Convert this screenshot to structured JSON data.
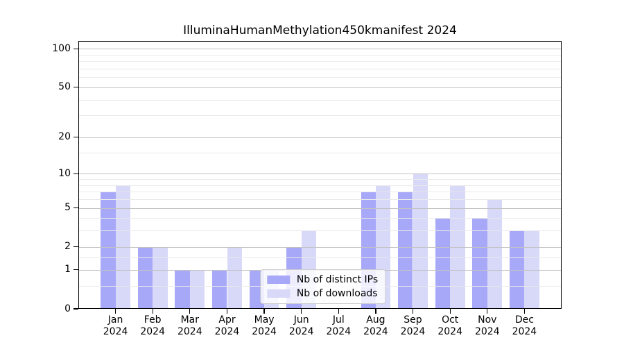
{
  "figure": {
    "background": "#ffffff"
  },
  "chart_data": {
    "type": "bar",
    "title": "IlluminaHumanMethylation450kmanifest 2024",
    "categories": [
      "Jan",
      "Feb",
      "Mar",
      "Apr",
      "May",
      "Jun",
      "Jul",
      "Aug",
      "Sep",
      "Oct",
      "Nov",
      "Dec"
    ],
    "category_year": "2024",
    "series": [
      {
        "name": "Nb of distinct IPs",
        "color": "#a8a8f8",
        "values": [
          7,
          2,
          1,
          1,
          1,
          2,
          0,
          7,
          7,
          4,
          4,
          3
        ]
      },
      {
        "name": "Nb of downloads",
        "color": "#d8d8f8",
        "values": [
          8,
          2,
          1,
          2,
          1,
          3,
          0,
          8,
          10,
          8,
          6,
          3
        ]
      }
    ],
    "yscale": "log1p",
    "ylim": [
      0,
      115
    ],
    "yticks": [
      0,
      1,
      2,
      5,
      10,
      20,
      50,
      100
    ],
    "minor_gridlines": [
      0.5,
      1.5,
      3,
      4,
      6,
      7,
      8,
      9,
      15,
      30,
      40,
      60,
      70,
      80,
      90
    ],
    "grid": true,
    "legend_position": "lower-center",
    "bar_group_width_fraction": 0.8,
    "axis_color": "#000000",
    "major_grid_color": "#c2c2c2",
    "minor_grid_color": "#e9e9e9"
  }
}
